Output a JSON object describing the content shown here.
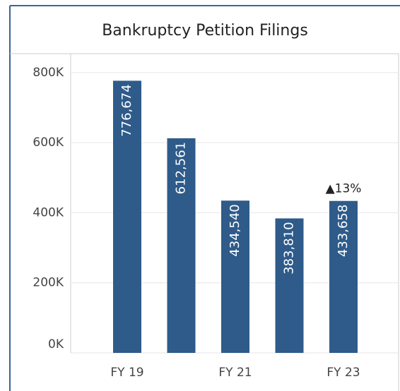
{
  "chart_data": {
    "type": "bar",
    "title": "Bankruptcy Petition Filings",
    "categories": [
      "FY 19",
      null,
      "FY 21",
      null,
      "FY 23"
    ],
    "values": [
      776674,
      612561,
      434540,
      383810,
      433658
    ],
    "value_labels": [
      "776,674",
      "612,561",
      "434,540",
      "383,810",
      "433,658"
    ],
    "color": "#2e5b8a",
    "annotation": "▲13%",
    "ylim": [
      0,
      850000
    ],
    "yticks": [
      {
        "value": 0,
        "label": "0K"
      },
      {
        "value": 200000,
        "label": "200K"
      },
      {
        "value": 400000,
        "label": "400K"
      },
      {
        "value": 600000,
        "label": "600K"
      },
      {
        "value": 800000,
        "label": "800K"
      }
    ],
    "grid": true
  }
}
